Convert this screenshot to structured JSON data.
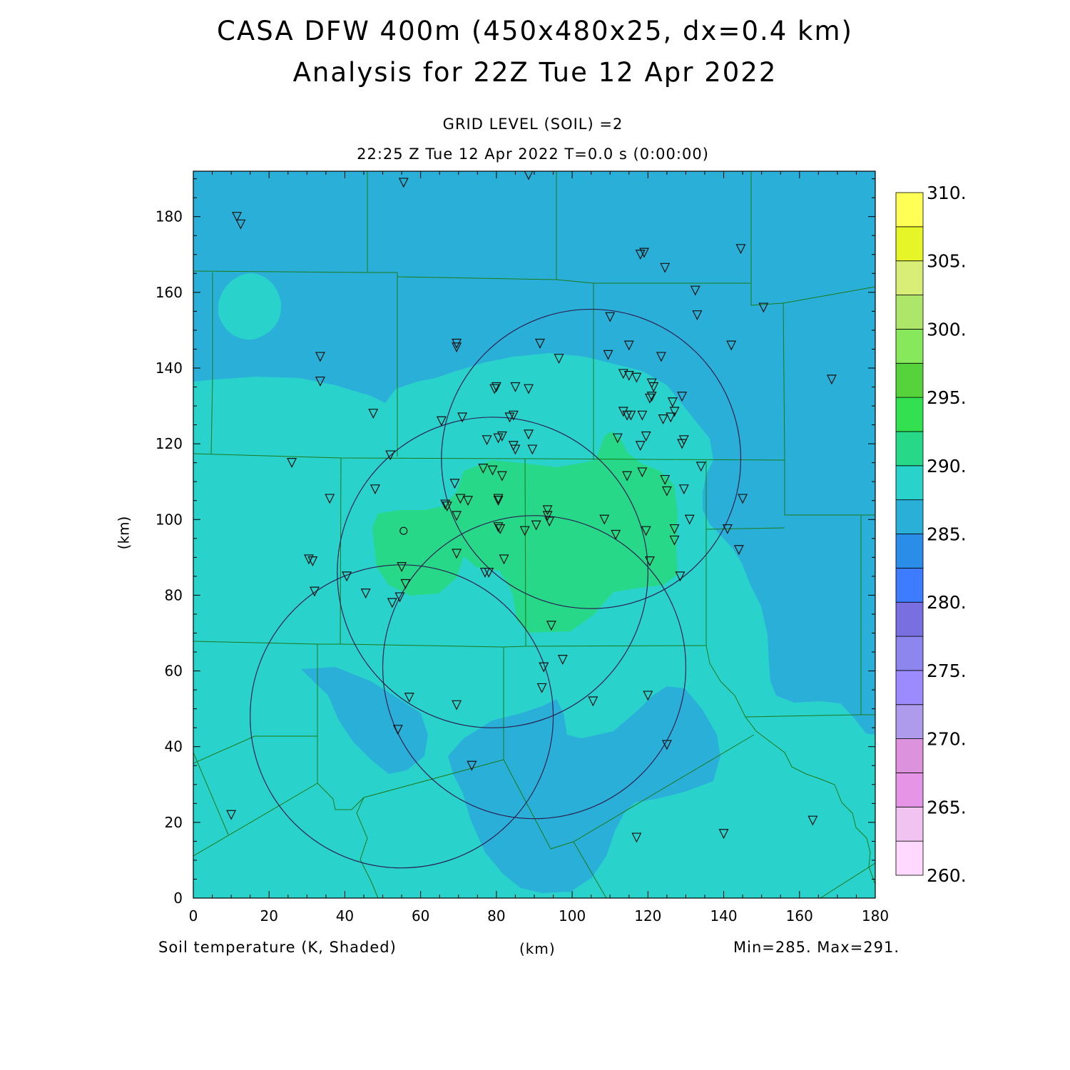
{
  "title": {
    "line1": "CASA DFW 400m (450x480x25, dx=0.4 km)",
    "line2": "Analysis for 22Z Tue 12 Apr 2022"
  },
  "subtitle": {
    "line1": "GRID LEVEL (SOIL) =2",
    "line2": "22:25 Z Tue 12 Apr 2022   T=0.0 s (0:00:00)"
  },
  "footer": {
    "field": "Soil temperature (K, Shaded)",
    "xunit": "(km)",
    "minmax": "Min=285. Max=291."
  },
  "axes": {
    "ylabel": "(km)",
    "xlabel": "(km)",
    "xlim": [
      0,
      180
    ],
    "ylim": [
      0,
      192
    ],
    "xticks": [
      "0",
      "20",
      "40",
      "60",
      "80",
      "100",
      "120",
      "140",
      "160",
      "180"
    ],
    "yticks": [
      "0",
      "20",
      "40",
      "60",
      "80",
      "100",
      "120",
      "140",
      "160",
      "180"
    ]
  },
  "colorbar": {
    "labels": [
      "260.",
      "265.",
      "270.",
      "275.",
      "280.",
      "285.",
      "290.",
      "295.",
      "300.",
      "305.",
      "310."
    ],
    "colors": [
      "#ffd9ff",
      "#f0c3f0",
      "#e695e6",
      "#dd92dd",
      "#af9bec",
      "#9b8bff",
      "#8d86ee",
      "#7a6fe0",
      "#3d7bff",
      "#2a8ee8",
      "#2ab0d8",
      "#2ad2cc",
      "#27d889",
      "#33e050",
      "#56d23a",
      "#86e85a",
      "#aee66a",
      "#d8ee77",
      "#e6f528",
      "#ffff55"
    ]
  },
  "colors": {
    "field_cold": "#2ab0d8",
    "field_mid": "#2ad2cc",
    "field_warm": "#27d889",
    "county_lines": "#1a7a1a",
    "radar_rings": "#2a2050"
  },
  "radars": [
    {
      "x": 105,
      "y": 116,
      "r": 39.5
    },
    {
      "x": 79,
      "y": 86,
      "r": 41
    },
    {
      "x": 90,
      "y": 61,
      "r": 40
    },
    {
      "x": 55,
      "y": 48,
      "r": 40
    }
  ],
  "special_station": {
    "x": 55.5,
    "y": 97
  },
  "stations": [
    [
      55.5,
      189
    ],
    [
      88.5,
      191
    ],
    [
      11.5,
      180
    ],
    [
      12.5,
      178
    ],
    [
      118,
      170
    ],
    [
      119,
      170.5
    ],
    [
      124.5,
      166.5
    ],
    [
      144.5,
      171.5
    ],
    [
      132.5,
      160.5
    ],
    [
      133,
      154
    ],
    [
      150.5,
      156
    ],
    [
      110,
      153.5
    ],
    [
      33.5,
      143
    ],
    [
      33.5,
      136.5
    ],
    [
      69.5,
      146.5
    ],
    [
      69.5,
      145.5
    ],
    [
      91.5,
      146.5
    ],
    [
      96.5,
      142.5
    ],
    [
      115,
      146
    ],
    [
      109.5,
      143.5
    ],
    [
      123.5,
      143
    ],
    [
      142,
      146
    ],
    [
      168.5,
      137
    ],
    [
      113.5,
      138.5
    ],
    [
      115,
      138
    ],
    [
      117,
      137.5
    ],
    [
      121,
      136
    ],
    [
      121.5,
      135
    ],
    [
      120.5,
      132
    ],
    [
      121,
      132.5
    ],
    [
      126.5,
      131
    ],
    [
      129,
      132.5
    ],
    [
      127,
      128.5
    ],
    [
      126,
      127
    ],
    [
      124,
      126.5
    ],
    [
      80,
      135
    ],
    [
      79.5,
      134.5
    ],
    [
      85,
      135
    ],
    [
      88.5,
      134.5
    ],
    [
      83.5,
      127
    ],
    [
      84.5,
      127.5
    ],
    [
      71,
      127
    ],
    [
      65.5,
      126
    ],
    [
      47.5,
      128
    ],
    [
      113.5,
      128.5
    ],
    [
      114.5,
      127.5
    ],
    [
      115.5,
      127.5
    ],
    [
      118.5,
      127.5
    ],
    [
      77.5,
      121
    ],
    [
      80.5,
      121.5
    ],
    [
      81.5,
      122
    ],
    [
      88.5,
      122.5
    ],
    [
      112,
      121.5
    ],
    [
      119.5,
      122
    ],
    [
      84.5,
      119.5
    ],
    [
      85,
      118.5
    ],
    [
      89.5,
      118.5
    ],
    [
      118,
      119.5
    ],
    [
      129.5,
      121
    ],
    [
      129,
      120
    ],
    [
      52,
      117
    ],
    [
      26,
      115
    ],
    [
      134,
      114
    ],
    [
      76.5,
      113.5
    ],
    [
      79,
      113
    ],
    [
      81.5,
      111.5
    ],
    [
      114.5,
      111.5
    ],
    [
      118.5,
      112.5
    ],
    [
      124.5,
      110.5
    ],
    [
      125,
      107.5
    ],
    [
      129.5,
      108
    ],
    [
      48,
      108
    ],
    [
      69,
      109.5
    ],
    [
      36,
      105.5
    ],
    [
      70.5,
      105.5
    ],
    [
      72.5,
      105
    ],
    [
      66.5,
      104
    ],
    [
      67,
      103.5
    ],
    [
      80.5,
      105.5
    ],
    [
      80.5,
      105
    ],
    [
      93.5,
      102.5
    ],
    [
      69.5,
      101
    ],
    [
      93.5,
      101
    ],
    [
      94,
      99.5
    ],
    [
      108.5,
      100
    ],
    [
      131,
      100
    ],
    [
      145,
      105.5
    ],
    [
      80.5,
      98
    ],
    [
      81,
      97.5
    ],
    [
      87.5,
      97
    ],
    [
      90.5,
      98.5
    ],
    [
      111.5,
      96
    ],
    [
      119.5,
      97
    ],
    [
      127,
      97.5
    ],
    [
      127,
      94.5
    ],
    [
      141,
      97.5
    ],
    [
      69.5,
      91
    ],
    [
      82,
      89.5
    ],
    [
      77,
      86
    ],
    [
      78,
      86
    ],
    [
      120.5,
      89
    ],
    [
      144,
      92
    ],
    [
      30.5,
      89.5
    ],
    [
      31.5,
      89
    ],
    [
      55,
      87.5
    ],
    [
      40.5,
      85
    ],
    [
      32,
      81
    ],
    [
      45.5,
      80.5
    ],
    [
      56,
      83
    ],
    [
      128.5,
      85
    ],
    [
      54.5,
      79.5
    ],
    [
      52.5,
      78
    ],
    [
      94.5,
      72
    ],
    [
      92.5,
      61
    ],
    [
      97.5,
      63
    ],
    [
      92,
      55.5
    ],
    [
      57,
      53
    ],
    [
      69.5,
      51
    ],
    [
      105.5,
      52
    ],
    [
      120,
      53.5
    ],
    [
      54,
      44.5
    ],
    [
      125,
      40.5
    ],
    [
      73.5,
      35
    ],
    [
      10,
      22
    ],
    [
      117,
      16
    ],
    [
      140,
      17
    ],
    [
      163.5,
      20.5
    ]
  ]
}
